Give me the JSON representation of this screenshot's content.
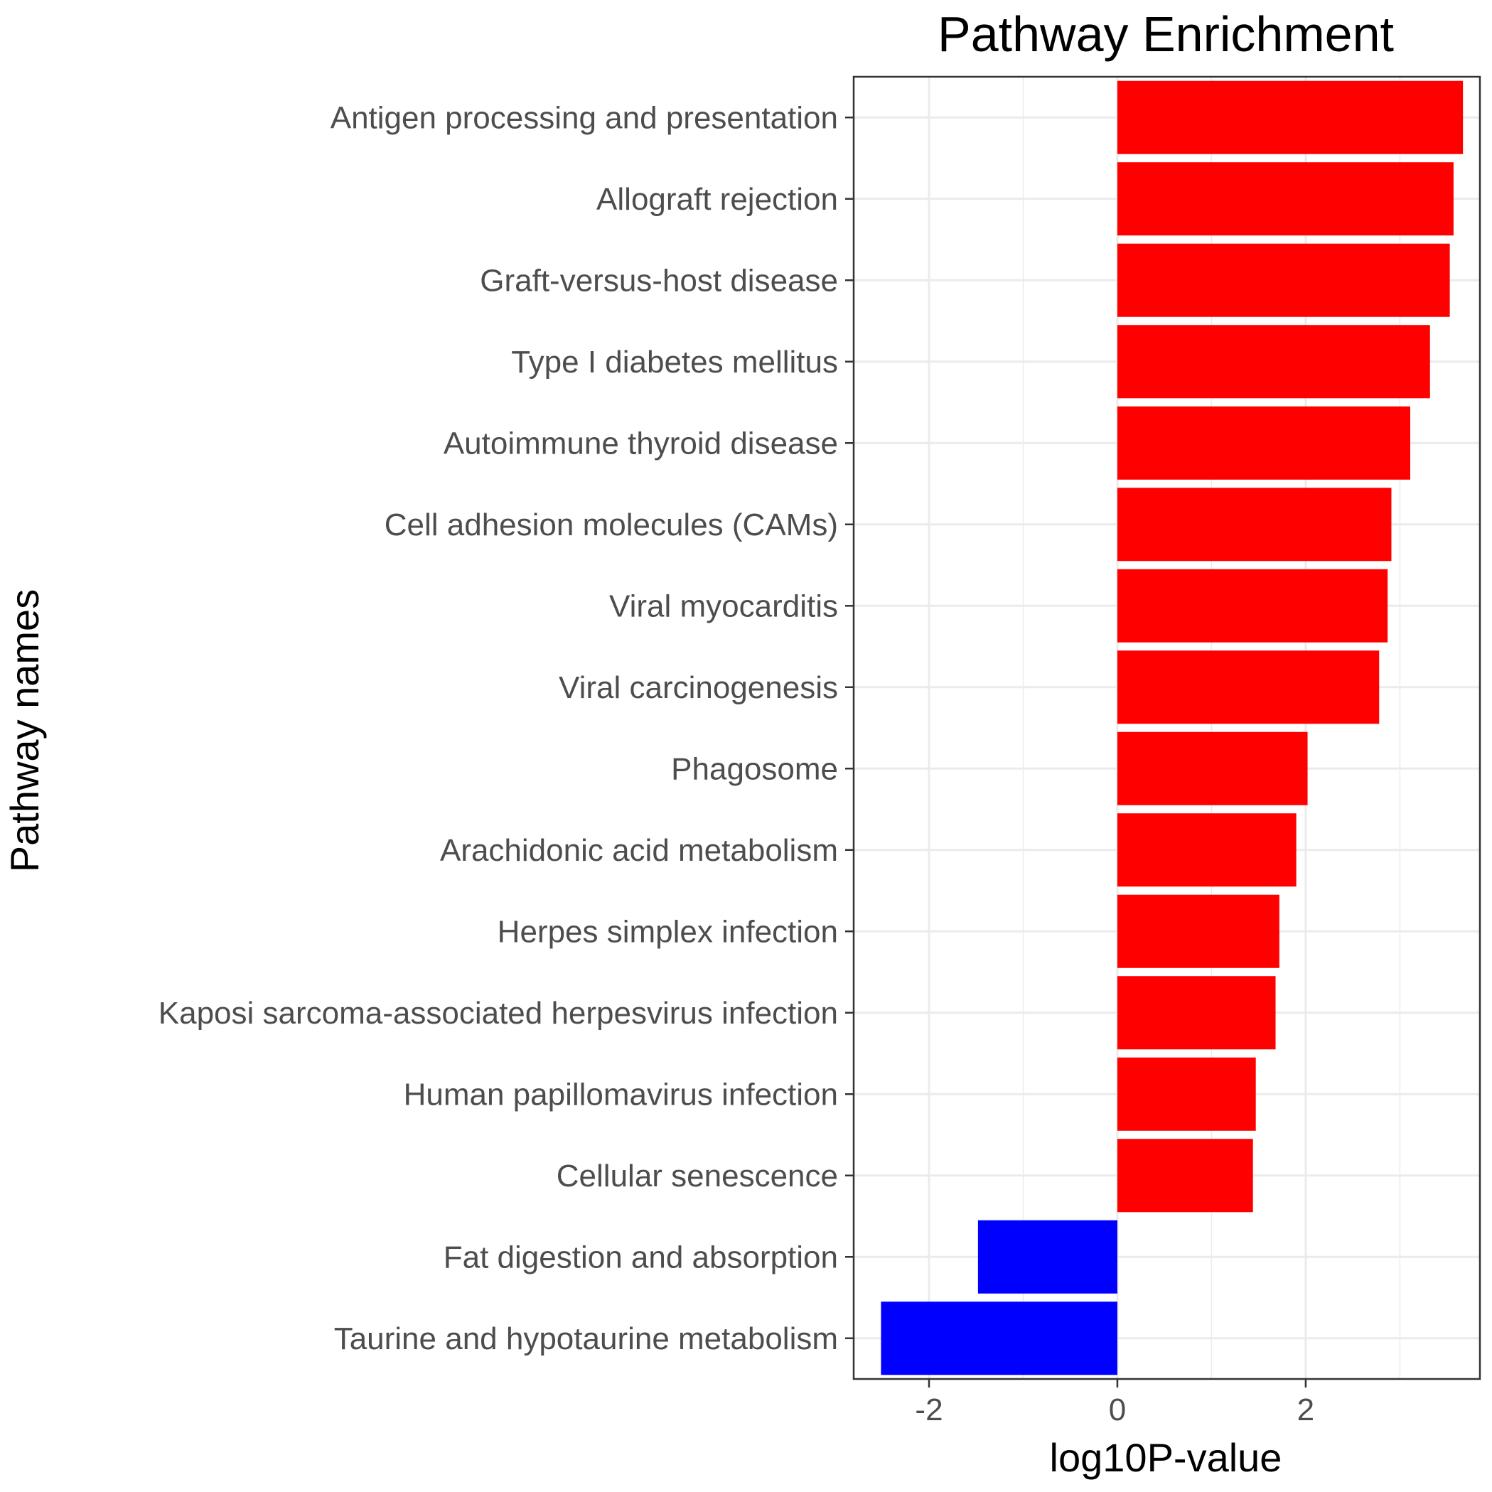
{
  "chart_data": {
    "type": "bar",
    "orientation": "horizontal",
    "title": "Pathway Enrichment",
    "xlabel": "log10P-value",
    "ylabel": "Pathway names",
    "xlim": [
      -2.8,
      3.85
    ],
    "x_ticks": [
      -2,
      0,
      2
    ],
    "x_tick_labels": [
      "-2",
      "0",
      "2"
    ],
    "grid": true,
    "legend": "none",
    "positive_color": "#ff0000",
    "negative_color": "#0000ff",
    "categories": [
      "Antigen processing and presentation",
      "Allograft rejection",
      "Graft-versus-host disease",
      "Type I diabetes mellitus",
      "Autoimmune thyroid disease",
      "Cell adhesion molecules (CAMs)",
      "Viral myocarditis",
      "Viral carcinogenesis",
      "Phagosome",
      "Arachidonic acid metabolism",
      "Herpes simplex infection",
      "Kaposi sarcoma-associated herpesvirus infection",
      "Human papillomavirus infection",
      "Cellular senescence",
      "Fat digestion and absorption",
      "Taurine and hypotaurine metabolism"
    ],
    "values": [
      3.67,
      3.57,
      3.53,
      3.32,
      3.11,
      2.91,
      2.87,
      2.78,
      2.02,
      1.9,
      1.72,
      1.68,
      1.47,
      1.44,
      -1.48,
      -2.51
    ]
  }
}
